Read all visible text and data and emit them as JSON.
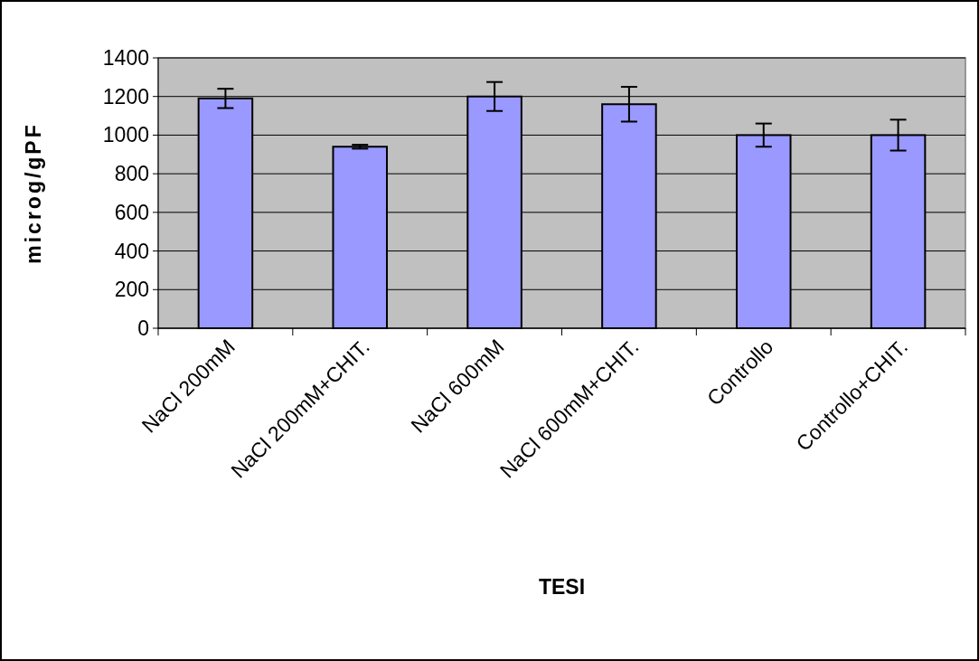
{
  "chart_data": {
    "type": "bar",
    "xlabel": "TESI",
    "ylabel": "microg/gPF",
    "categories": [
      "NaCl 200mM",
      "NaCl 200mM+CHIT.",
      "NaCl 600mM",
      "NaCl 600mM+CHIT.",
      "Controllo",
      "Controllo+CHIT."
    ],
    "values": [
      1190,
      940,
      1200,
      1160,
      1000,
      1000
    ],
    "errors": [
      50,
      10,
      75,
      90,
      60,
      80
    ],
    "color": "#9999ff",
    "ylim": [
      0,
      1400
    ],
    "yticks": [
      0,
      200,
      400,
      600,
      800,
      1000,
      1200,
      1400
    ],
    "grid": "y"
  }
}
